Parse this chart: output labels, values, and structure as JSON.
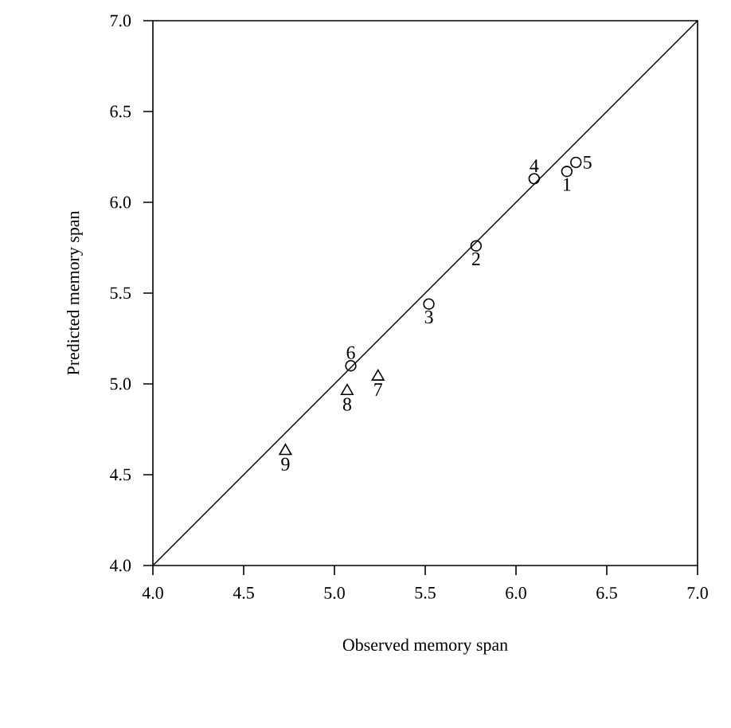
{
  "chart_data": {
    "type": "scatter",
    "xlabel": "Observed memory span",
    "ylabel": "Predicted memory span",
    "xlim": [
      4.0,
      7.0
    ],
    "ylim": [
      4.0,
      7.0
    ],
    "xticks": [
      {
        "value": 4.0,
        "label": "4.0"
      },
      {
        "value": 4.5,
        "label": "4.5"
      },
      {
        "value": 5.0,
        "label": "5.0"
      },
      {
        "value": 5.5,
        "label": "5.5"
      },
      {
        "value": 6.0,
        "label": "6.0"
      },
      {
        "value": 6.5,
        "label": "6.5"
      },
      {
        "value": 7.0,
        "label": "7.0"
      }
    ],
    "yticks": [
      {
        "value": 4.0,
        "label": "4.0"
      },
      {
        "value": 4.5,
        "label": "4.5"
      },
      {
        "value": 5.0,
        "label": "5.0"
      },
      {
        "value": 5.5,
        "label": "5.5"
      },
      {
        "value": 6.0,
        "label": "6.0"
      },
      {
        "value": 6.5,
        "label": "6.5"
      },
      {
        "value": 7.0,
        "label": "7.0"
      }
    ],
    "series": [
      {
        "marker": "circle",
        "color": "#000000",
        "x": [
          6.28,
          5.78,
          5.52,
          6.1,
          6.33,
          5.09
        ],
        "values": [
          6.17,
          5.76,
          5.44,
          6.13,
          6.22,
          5.1
        ]
      },
      {
        "marker": "triangle",
        "color": "#000000",
        "x": [
          5.24,
          5.07,
          4.73
        ],
        "values": [
          5.04,
          4.96,
          4.63
        ]
      },
      {
        "type": "line",
        "marker": "none",
        "color": "#000000",
        "x": [
          4.0,
          7.0
        ],
        "values": [
          4.0,
          7.0
        ]
      }
    ],
    "annotations": [
      {
        "text": "1",
        "x": 6.28,
        "y": 6.17
      },
      {
        "text": "2",
        "x": 5.78,
        "y": 5.76
      },
      {
        "text": "3",
        "x": 5.52,
        "y": 5.44
      },
      {
        "text": "4",
        "x": 6.1,
        "y": 6.13
      },
      {
        "text": "5",
        "x": 6.33,
        "y": 6.22
      },
      {
        "text": "6",
        "x": 5.09,
        "y": 5.1
      },
      {
        "text": "7",
        "x": 5.24,
        "y": 5.04
      },
      {
        "text": "8",
        "x": 5.07,
        "y": 4.96
      },
      {
        "text": "9",
        "x": 4.73,
        "y": 4.63
      }
    ]
  }
}
